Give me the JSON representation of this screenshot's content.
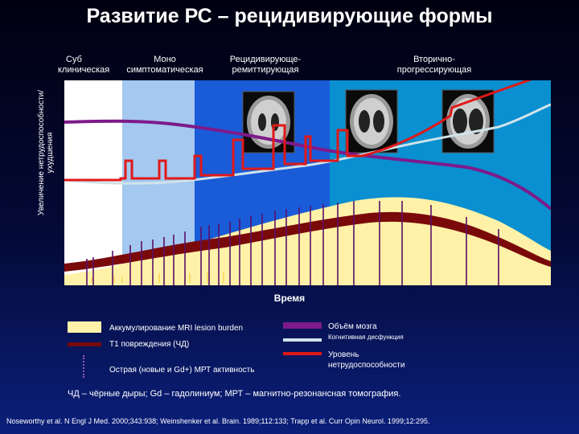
{
  "title": "Развитие РС – рецидивирующие формы",
  "phases": [
    {
      "line1": "Суб",
      "line2": "клиническая"
    },
    {
      "line1": "Моно",
      "line2": "симптоматическая"
    },
    {
      "line1": "Рецидивирующе-",
      "line2": "ремиттирующая"
    },
    {
      "line1": "Вторично-",
      "line2": "прогрессирующая"
    }
  ],
  "y_axis_label": "Увеличение нетрудоспособности/ухудшения",
  "x_axis_label": "Время",
  "legend": {
    "mri_burden": "Аккумулирование MRI lesion burden",
    "t1_lesions": "Т1 повреждения (ЧД)",
    "acute_activity": "Острая (новые и Gd+) МРТ активность",
    "brain_volume": "Объём мозга",
    "cognitive": "Когнитивная дисфункция",
    "disability": "Уровень нетрудоспособности"
  },
  "colors": {
    "mri_burden": "#fff2a8",
    "t1_lesions": "#7a0a0a",
    "brain_volume": "#7d1b8a",
    "cognitive": "#cfe3ea",
    "disability": "#e01818",
    "phase1": "#ffffff",
    "phase2": "#a4c8f0",
    "phase3": "#1a5bd8",
    "phase4": "#0a8fd0"
  },
  "footnote": "ЧД – чёрные дыры; Gd – гадолиниум; МРТ – магнитно-резонансная томография.",
  "citation": "Noseworthy et al. N Engl J Med. 2000;343:938; Weinshenker et al. Brain. 1989;112:133; Trapp et al. Curr Opin Neurol. 1999;12:295."
}
